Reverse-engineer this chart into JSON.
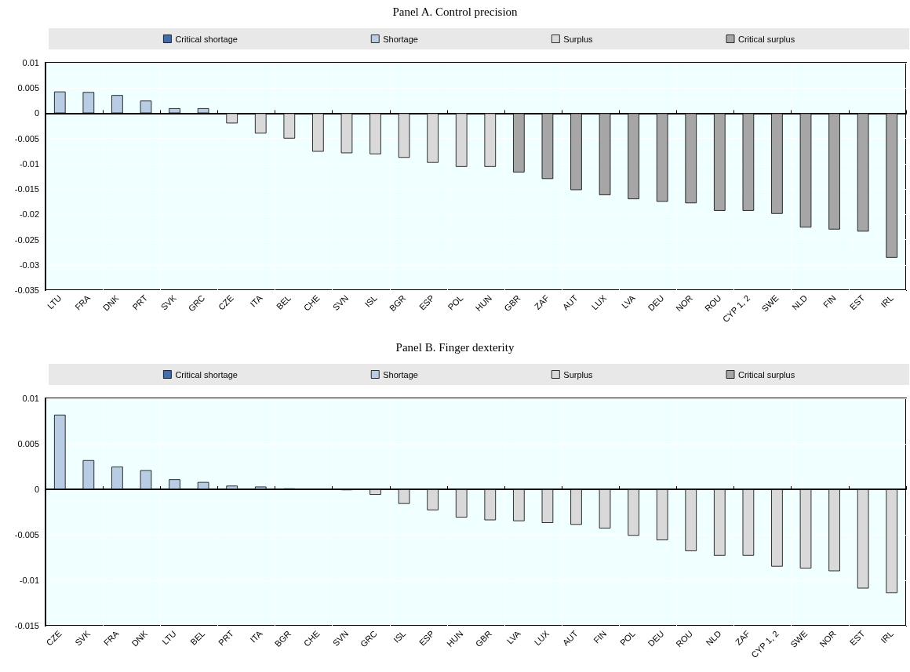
{
  "chart_data": [
    {
      "type": "bar",
      "title": "Panel A. Control precision",
      "stacked": true,
      "grid": true,
      "legend": "top",
      "categories": [
        "LTU",
        "FRA",
        "DNK",
        "PRT",
        "SVK",
        "GRC",
        "CZE",
        "ITA",
        "BEL",
        "CHE",
        "SVN",
        "ISL",
        "BGR",
        "ESP",
        "POL",
        "HUN",
        "GBR",
        "ZAF",
        "AUT",
        "LUX",
        "LVA",
        "DEU",
        "NOR",
        "ROU",
        "CYP 1, 2",
        "SWE",
        "NLD",
        "FIN",
        "EST",
        "IRL"
      ],
      "series": [
        {
          "name": "Critical shortage",
          "color": "#3d6eb4",
          "values": [
            null,
            null,
            null,
            null,
            null,
            null,
            null,
            null,
            null,
            null,
            null,
            null,
            null,
            null,
            null,
            null,
            null,
            null,
            null,
            null,
            null,
            null,
            null,
            null,
            null,
            null,
            null,
            null,
            null,
            null
          ]
        },
        {
          "name": "Shortage",
          "color": "#b8cce4",
          "values": [
            0.0043,
            0.0042,
            0.0036,
            0.0025,
            0.001,
            0.001,
            null,
            null,
            null,
            null,
            null,
            null,
            null,
            null,
            null,
            null,
            null,
            null,
            null,
            null,
            null,
            null,
            null,
            null,
            null,
            null,
            null,
            null,
            null,
            null
          ]
        },
        {
          "name": "Surplus",
          "color": "#d9d9d9",
          "values": [
            null,
            null,
            null,
            null,
            null,
            null,
            -0.002,
            -0.004,
            -0.005,
            -0.0076,
            -0.0079,
            -0.0081,
            -0.0088,
            -0.0098,
            -0.0106,
            -0.0106,
            null,
            null,
            null,
            null,
            null,
            null,
            null,
            null,
            null,
            null,
            null,
            null,
            null,
            null
          ]
        },
        {
          "name": "Critical surplus",
          "color": "#a6a6a6",
          "values": [
            null,
            null,
            null,
            null,
            null,
            null,
            null,
            null,
            null,
            null,
            null,
            null,
            null,
            null,
            null,
            null,
            -0.0117,
            -0.013,
            -0.0152,
            -0.0162,
            -0.017,
            -0.0175,
            -0.0178,
            -0.0193,
            -0.0193,
            -0.0199,
            -0.0226,
            -0.023,
            -0.0234,
            -0.0286
          ]
        }
      ],
      "ylim": [
        -0.035,
        0.01
      ],
      "yticks": [
        -0.035,
        -0.03,
        -0.025,
        -0.02,
        -0.015,
        -0.01,
        -0.005,
        0,
        0.005,
        0.01
      ]
    },
    {
      "type": "bar",
      "title": "Panel B. Finger dexterity",
      "stacked": true,
      "grid": true,
      "legend": "top",
      "categories": [
        "CZE",
        "SVK",
        "FRA",
        "DNK",
        "LTU",
        "BEL",
        "PRT",
        "ITA",
        "BGR",
        "CHE",
        "SVN",
        "GRC",
        "ISL",
        "ESP",
        "HUN",
        "GBR",
        "LVA",
        "LUX",
        "AUT",
        "FIN",
        "POL",
        "DEU",
        "ROU",
        "NLD",
        "ZAF",
        "CYP 1, 2",
        "SWE",
        "NOR",
        "EST",
        "IRL"
      ],
      "series": [
        {
          "name": "Critical shortage",
          "color": "#3d6eb4",
          "values": [
            null,
            null,
            null,
            null,
            null,
            null,
            null,
            null,
            null,
            null,
            null,
            null,
            null,
            null,
            null,
            null,
            null,
            null,
            null,
            null,
            null,
            null,
            null,
            null,
            null,
            null,
            null,
            null,
            null,
            null
          ]
        },
        {
          "name": "Shortage",
          "color": "#b8cce4",
          "values": [
            0.0082,
            0.0032,
            0.0025,
            0.0021,
            0.0011,
            0.0008,
            0.0004,
            0.0003,
            0.0001,
            null,
            null,
            null,
            null,
            null,
            null,
            null,
            null,
            null,
            null,
            null,
            null,
            null,
            null,
            null,
            null,
            null,
            null,
            null,
            null,
            null
          ]
        },
        {
          "name": "Surplus",
          "color": "#d9d9d9",
          "values": [
            null,
            null,
            null,
            null,
            null,
            null,
            null,
            null,
            null,
            null,
            -0.0001,
            -0.0006,
            -0.0016,
            -0.0023,
            -0.0031,
            -0.0034,
            -0.0035,
            -0.0037,
            -0.0039,
            -0.0043,
            -0.0051,
            -0.0056,
            -0.0068,
            -0.0073,
            -0.0073,
            -0.0085,
            -0.0087,
            -0.009,
            -0.0109,
            -0.0114
          ]
        },
        {
          "name": "Critical surplus",
          "color": "#a6a6a6",
          "values": [
            null,
            null,
            null,
            null,
            null,
            null,
            null,
            null,
            null,
            null,
            null,
            null,
            null,
            null,
            null,
            null,
            null,
            null,
            null,
            null,
            null,
            null,
            null,
            null,
            null,
            null,
            null,
            null,
            null,
            null
          ]
        }
      ],
      "ylim": [
        -0.015,
        0.01
      ],
      "yticks": [
        -0.015,
        -0.01,
        -0.005,
        0,
        0.005,
        0.01
      ]
    }
  ]
}
